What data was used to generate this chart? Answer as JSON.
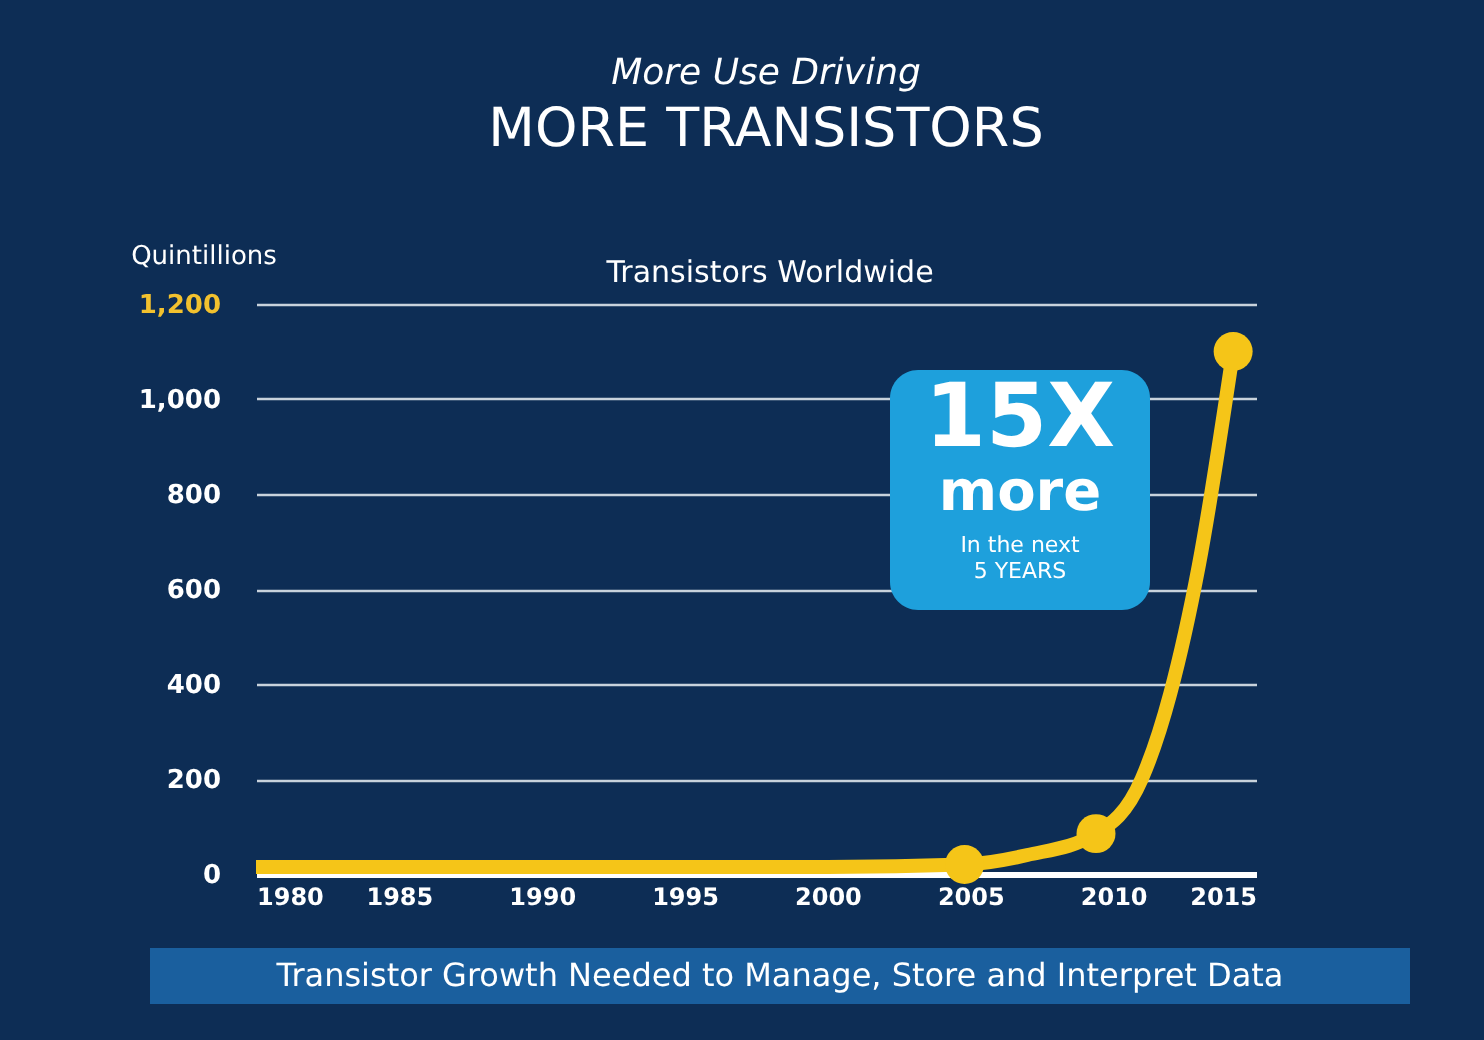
{
  "chart_data": {
    "type": "line",
    "title": "MORE TRANSISTORS",
    "subtitle": "More Use Driving",
    "ylabel": "Quintillions",
    "annotations": [
      "Transistors Worldwide",
      "15X\nmore\nIn the next\n5 YEARS",
      "Transistor Growth Needed to Manage, Store and Interpret Data"
    ],
    "xlim": [
      1980,
      2015
    ],
    "xticks": [
      1980,
      1985,
      1990,
      1995,
      2000,
      2005,
      2010,
      2015
    ],
    "ylim": [
      0,
      1200
    ],
    "yticks": [
      0,
      200,
      400,
      600,
      {
        "value": 800,
        "label": "800"
      },
      {
        "value": 1000,
        "label": "1,000"
      },
      {
        "value": 1200,
        "label": "1,200"
      }
    ],
    "grid": "y",
    "line_style": "solid",
    "series": [
      {
        "color": "#f5c518",
        "x": [
          1980,
          1990,
          2000,
          2004.8,
          2007,
          2009.4,
          2011,
          2012,
          2013,
          2014.2
        ],
        "values": [
          15,
          15,
          15,
          20,
          40,
          85,
          200,
          380,
          650,
          1100
        ]
      },
      {
        "type": "scatter",
        "color": "#f5c518",
        "marker": "circle",
        "x": [
          2004.8,
          2009.4,
          2014.2
        ],
        "values": [
          20,
          85,
          1100
        ]
      }
    ]
  }
}
